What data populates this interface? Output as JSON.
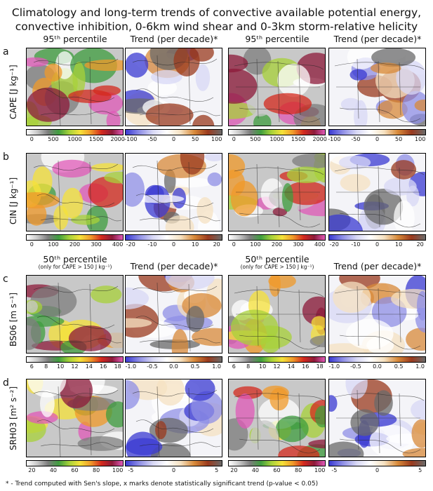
{
  "title_line1": "Climatology and long-term trends of convective available potential energy,",
  "title_line2": "convective inhibition, 0-6km wind shear and 0-3km storm-relative helicity",
  "rows": [
    {
      "letter": "a",
      "label": "CAPE [J kg⁻¹]",
      "cols": [
        {
          "title": "95ᵗʰ percentile",
          "note": "",
          "ticks": [
            "0",
            "500",
            "1000",
            "1500",
            "2000"
          ],
          "scale": "seq"
        },
        {
          "title": "Trend (per decade)*",
          "note": "",
          "ticks": [
            "-100",
            "-50",
            "0",
            "50",
            "100"
          ],
          "scale": "div"
        },
        {
          "title": "95ᵗʰ percentile",
          "note": "",
          "ticks": [
            "0",
            "500",
            "1000",
            "1500",
            "2000"
          ],
          "scale": "seq"
        },
        {
          "title": "Trend (per decade)*",
          "note": "",
          "ticks": [
            "-100",
            "-50",
            "0",
            "50",
            "100"
          ],
          "scale": "div"
        }
      ]
    },
    {
      "letter": "b",
      "label": "CIN [J kg⁻¹]",
      "cols": [
        {
          "title": "",
          "note": "",
          "ticks": [
            "0",
            "100",
            "200",
            "300",
            "400"
          ],
          "scale": "seq"
        },
        {
          "title": "",
          "note": "",
          "ticks": [
            "-20",
            "-10",
            "0",
            "10",
            "20"
          ],
          "scale": "div"
        },
        {
          "title": "",
          "note": "",
          "ticks": [
            "0",
            "100",
            "200",
            "300",
            "400"
          ],
          "scale": "seq"
        },
        {
          "title": "",
          "note": "",
          "ticks": [
            "-20",
            "-10",
            "0",
            "10",
            "20"
          ],
          "scale": "div"
        }
      ]
    },
    {
      "letter": "c",
      "label": "BS06 [m s⁻¹]",
      "cols": [
        {
          "title": "50ᵗʰ percentile",
          "note": "(only for CAPE > 150 J kg⁻¹)",
          "ticks": [
            "6",
            "8",
            "10",
            "12",
            "14",
            "16",
            "18"
          ],
          "scale": "seq"
        },
        {
          "title": "Trend (per decade)*",
          "note": "",
          "ticks": [
            "-1.0",
            "-0.5",
            "0.0",
            "0.5",
            "1.0"
          ],
          "scale": "div"
        },
        {
          "title": "50ᵗʰ percentile",
          "note": "(only for CAPE > 150 J kg⁻¹)",
          "ticks": [
            "6",
            "8",
            "10",
            "12",
            "14",
            "16",
            "18"
          ],
          "scale": "seq"
        },
        {
          "title": "Trend (per decade)*",
          "note": "",
          "ticks": [
            "-1.0",
            "-0.5",
            "0.0",
            "0.5",
            "1.0"
          ],
          "scale": "div"
        }
      ]
    },
    {
      "letter": "d",
      "label": "SRH03 [m² s⁻²]",
      "cols": [
        {
          "title": "",
          "note": "",
          "ticks": [
            "20",
            "40",
            "60",
            "80",
            "100"
          ],
          "scale": "seq"
        },
        {
          "title": "",
          "note": "",
          "ticks": [
            "-5",
            "0",
            "5"
          ],
          "scale": "div"
        },
        {
          "title": "",
          "note": "",
          "ticks": [
            "20",
            "40",
            "60",
            "80",
            "100"
          ],
          "scale": "seq"
        },
        {
          "title": "",
          "note": "",
          "ticks": [
            "-5",
            "0",
            "5"
          ],
          "scale": "div"
        }
      ]
    }
  ],
  "footnote": "* - Trend computed with Sen's slope, x marks denote statistically significant trend (p-value < 0.05)",
  "colors": {
    "seq": [
      "#ffffff",
      "#c8c8c8",
      "#7d7d7d",
      "#3f9e3f",
      "#a8d23a",
      "#f5e23a",
      "#f09a2a",
      "#d42a1e",
      "#8c1a3a",
      "#e05ab8"
    ],
    "div": [
      "#3a3ad2",
      "#8f8fe6",
      "#d8d8f5",
      "#ffffff",
      "#f6e2c2",
      "#d88a3a",
      "#9a3a1e",
      "#6a6a6a"
    ]
  }
}
